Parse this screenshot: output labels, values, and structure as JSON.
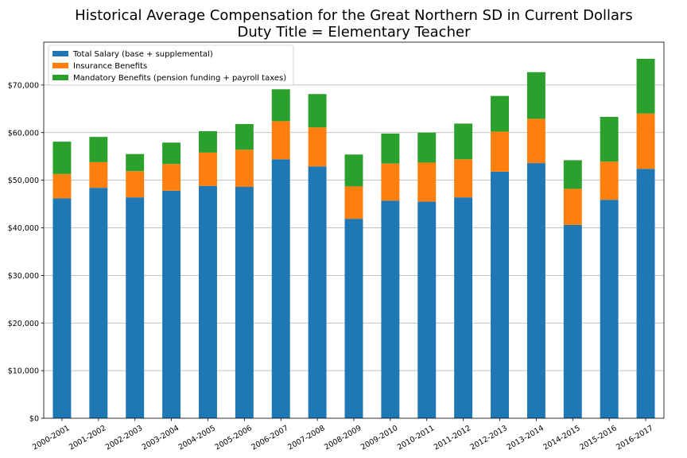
{
  "chart_data": {
    "type": "bar",
    "stacked": true,
    "title": "Historical Average Compensation for the Great Northern SD in Current Dollars",
    "subtitle": "Duty Title = Elementary Teacher",
    "xlabel": "",
    "ylabel": "",
    "categories": [
      "2000-2001",
      "2001-2002",
      "2002-2003",
      "2003-2004",
      "2004-2005",
      "2005-2006",
      "2006-2007",
      "2007-2008",
      "2008-2009",
      "2009-2010",
      "2010-2011",
      "2011-2012",
      "2012-2013",
      "2013-2014",
      "2014-2015",
      "2015-2016",
      "2016-2017"
    ],
    "series": [
      {
        "name": "Total Salary (base + supplemental)",
        "color": "#1f77b4",
        "values": [
          46200,
          48400,
          46400,
          47800,
          48800,
          48600,
          54400,
          52900,
          41900,
          45700,
          45500,
          46400,
          51800,
          53600,
          40600,
          45900,
          52400
        ]
      },
      {
        "name": "Insurance Benefits",
        "color": "#ff7f0e",
        "values": [
          5100,
          5400,
          5500,
          5600,
          7000,
          7800,
          8000,
          8200,
          6800,
          7800,
          8200,
          8000,
          8400,
          9300,
          7600,
          8000,
          11600
        ]
      },
      {
        "name": "Mandatory Benefits (pension funding + payroll taxes)",
        "color": "#2ca02c",
        "values": [
          6800,
          5300,
          3600,
          4500,
          4500,
          5400,
          6700,
          7000,
          6700,
          6300,
          6300,
          7500,
          7500,
          9800,
          6000,
          9400,
          11500
        ]
      }
    ],
    "ylim": [
      0,
      79000
    ],
    "yticks": [
      0,
      10000,
      20000,
      30000,
      40000,
      50000,
      60000,
      70000
    ],
    "ytick_labels": [
      "$0",
      "$10,000",
      "$20,000",
      "$30,000",
      "$40,000",
      "$50,000",
      "$60,000",
      "$70,000"
    ],
    "grid": "horizontal",
    "legend_position": "top-left"
  }
}
